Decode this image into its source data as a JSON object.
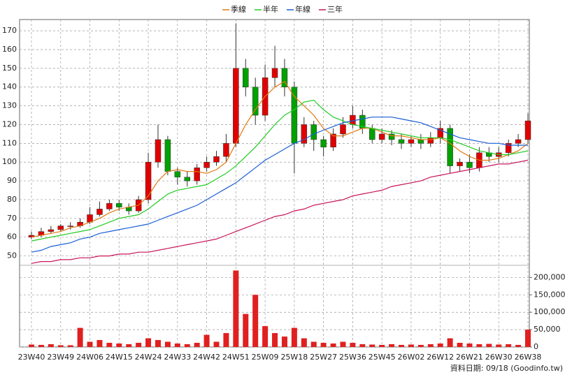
{
  "chart_data": {
    "type": "candlestick",
    "categories": [
      "23W40",
      null,
      null,
      "23W49",
      null,
      null,
      "24W06",
      null,
      null,
      "24W15",
      null,
      null,
      "24W24",
      null,
      null,
      "24W33",
      null,
      null,
      "24W42",
      null,
      null,
      "24W51",
      null,
      null,
      "25W09",
      null,
      null,
      "25W18",
      null,
      null,
      "25W27",
      null,
      null,
      "25W36",
      null,
      null,
      "25W45",
      null,
      null,
      "26W02",
      null,
      null,
      "26W12",
      null,
      null,
      "26W21",
      null,
      null,
      "26W30",
      null,
      null,
      "26W38"
    ],
    "open": [
      60,
      61,
      63,
      64,
      66,
      66,
      68,
      72,
      75,
      78,
      76,
      74,
      80,
      100,
      112,
      95,
      92,
      90,
      97,
      100,
      103,
      110,
      150,
      140,
      125,
      145,
      150,
      140,
      110,
      120,
      112,
      108,
      115,
      120,
      125,
      118,
      112,
      115,
      112,
      110,
      112,
      110,
      113,
      118,
      98,
      100,
      97,
      105,
      103,
      105,
      110,
      112
    ],
    "high": [
      63,
      65,
      66,
      67,
      68,
      70,
      76,
      79,
      80,
      80,
      78,
      82,
      105,
      120,
      114,
      97,
      95,
      99,
      103,
      106,
      115,
      174,
      155,
      145,
      152,
      162,
      155,
      143,
      124,
      122,
      114,
      118,
      124,
      130,
      128,
      120,
      118,
      117,
      115,
      114,
      115,
      116,
      122,
      120,
      102,
      104,
      108,
      108,
      108,
      112,
      115,
      126
    ],
    "low": [
      59,
      60,
      62,
      63,
      64,
      65,
      67,
      71,
      74,
      74,
      72,
      73,
      78,
      97,
      93,
      88,
      87,
      88,
      95,
      98,
      100,
      108,
      135,
      120,
      122,
      140,
      135,
      94,
      108,
      106,
      103,
      106,
      113,
      118,
      115,
      110,
      110,
      109,
      107,
      108,
      107,
      108,
      110,
      94,
      95,
      94,
      95,
      100,
      100,
      103,
      108,
      110
    ],
    "close": [
      61,
      63,
      64,
      66,
      66,
      68,
      72,
      75,
      78,
      76,
      74,
      80,
      100,
      112,
      95,
      92,
      90,
      97,
      100,
      103,
      110,
      150,
      140,
      125,
      145,
      150,
      140,
      110,
      120,
      112,
      108,
      115,
      120,
      125,
      118,
      112,
      115,
      112,
      110,
      112,
      110,
      113,
      118,
      98,
      100,
      97,
      105,
      103,
      105,
      110,
      112,
      122
    ],
    "up_color": "#e00000",
    "down_color": "#00a000",
    "series": [
      {
        "name": "季線",
        "color": "#e07a10",
        "values": [
          60,
          61,
          62,
          63,
          65,
          66,
          68,
          70,
          73,
          75,
          76,
          77,
          82,
          90,
          95,
          96,
          95,
          95,
          94,
          96,
          100,
          110,
          120,
          128,
          135,
          140,
          143,
          135,
          130,
          125,
          118,
          114,
          114,
          116,
          118,
          118,
          116,
          114,
          114,
          113,
          112,
          112,
          113,
          110,
          106,
          103,
          101,
          101,
          102,
          104,
          106,
          110
        ]
      },
      {
        "name": "半年",
        "color": "#22cc22",
        "values": [
          58,
          59,
          60,
          61,
          62,
          63,
          64,
          66,
          68,
          70,
          71,
          72,
          75,
          79,
          83,
          85,
          86,
          87,
          88,
          91,
          94,
          98,
          103,
          108,
          114,
          120,
          125,
          128,
          132,
          133,
          128,
          124,
          122,
          120,
          119,
          118,
          117,
          116,
          115,
          114,
          113,
          113,
          113,
          112,
          110,
          108,
          106,
          105,
          104,
          104,
          105,
          106
        ]
      },
      {
        "name": "年線",
        "color": "#1a5fd6",
        "values": [
          52,
          53,
          55,
          56,
          57,
          59,
          60,
          62,
          63,
          64,
          65,
          66,
          67,
          69,
          71,
          73,
          75,
          77,
          80,
          83,
          86,
          89,
          93,
          97,
          101,
          104,
          107,
          110,
          112,
          115,
          117,
          119,
          121,
          122,
          123,
          124,
          124,
          124,
          123,
          122,
          121,
          119,
          117,
          115,
          113,
          112,
          111,
          110,
          110,
          109,
          109,
          109
        ]
      },
      {
        "name": "三年",
        "color": "#c8155a",
        "values": [
          46,
          47,
          47,
          48,
          48,
          49,
          49,
          50,
          50,
          51,
          51,
          52,
          52,
          53,
          54,
          55,
          56,
          57,
          58,
          59,
          61,
          63,
          65,
          67,
          69,
          71,
          72,
          74,
          75,
          77,
          78,
          79,
          80,
          82,
          83,
          84,
          85,
          87,
          88,
          89,
          90,
          92,
          93,
          94,
          95,
          96,
          97,
          98,
          99,
          99,
          100,
          101
        ]
      }
    ],
    "ylim": [
      45,
      176
    ],
    "yticks": [
      50,
      60,
      70,
      80,
      90,
      100,
      110,
      120,
      130,
      140,
      150,
      160,
      170
    ],
    "volume": {
      "color": "#e02020",
      "values": [
        7000,
        6000,
        8000,
        5000,
        5000,
        55000,
        15000,
        20000,
        12000,
        10000,
        8000,
        12000,
        25000,
        20000,
        15000,
        10000,
        8000,
        12000,
        35000,
        15000,
        40000,
        220000,
        95000,
        150000,
        60000,
        40000,
        30000,
        55000,
        25000,
        15000,
        12000,
        10000,
        15000,
        12000,
        8000,
        7000,
        6000,
        8000,
        6000,
        7000,
        6000,
        8000,
        10000,
        25000,
        12000,
        10000,
        8000,
        9000,
        7000,
        8000,
        6000,
        50000
      ],
      "ylim": [
        0,
        235000
      ],
      "yticks": [
        0,
        {
          "value": 50000,
          "label": "50,000"
        },
        {
          "value": 100000,
          "label": "100,000"
        },
        {
          "value": 150000,
          "label": "150,000"
        },
        {
          "value": 200000,
          "label": "200,000"
        }
      ]
    },
    "grid": true,
    "legend": "top",
    "source_note": "資料日期: 09/18 (Goodinfo.tw)"
  }
}
